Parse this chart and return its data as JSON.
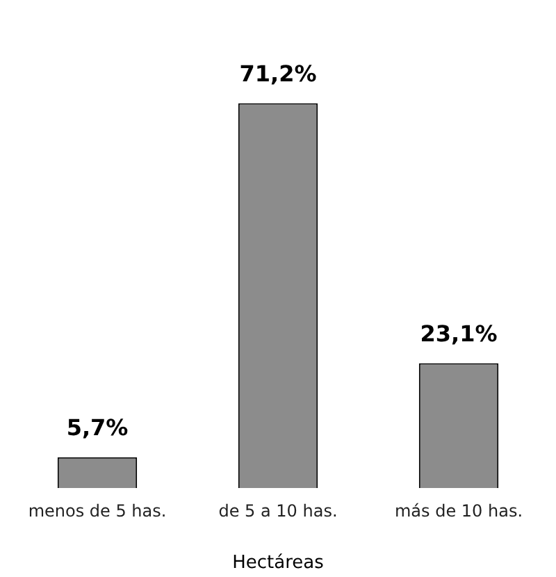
{
  "chart_data": {
    "type": "bar",
    "xlabel": "Hectáreas",
    "categories": [
      "menos de 5 has.",
      "de 5 a 10 has.",
      "más de 10 has."
    ],
    "values": [
      5.7,
      71.2,
      23.1
    ],
    "value_labels": [
      "5,7%",
      "71,2%",
      "23,1%"
    ],
    "color": "#8c8c8c",
    "grid": false,
    "legend": false
  }
}
